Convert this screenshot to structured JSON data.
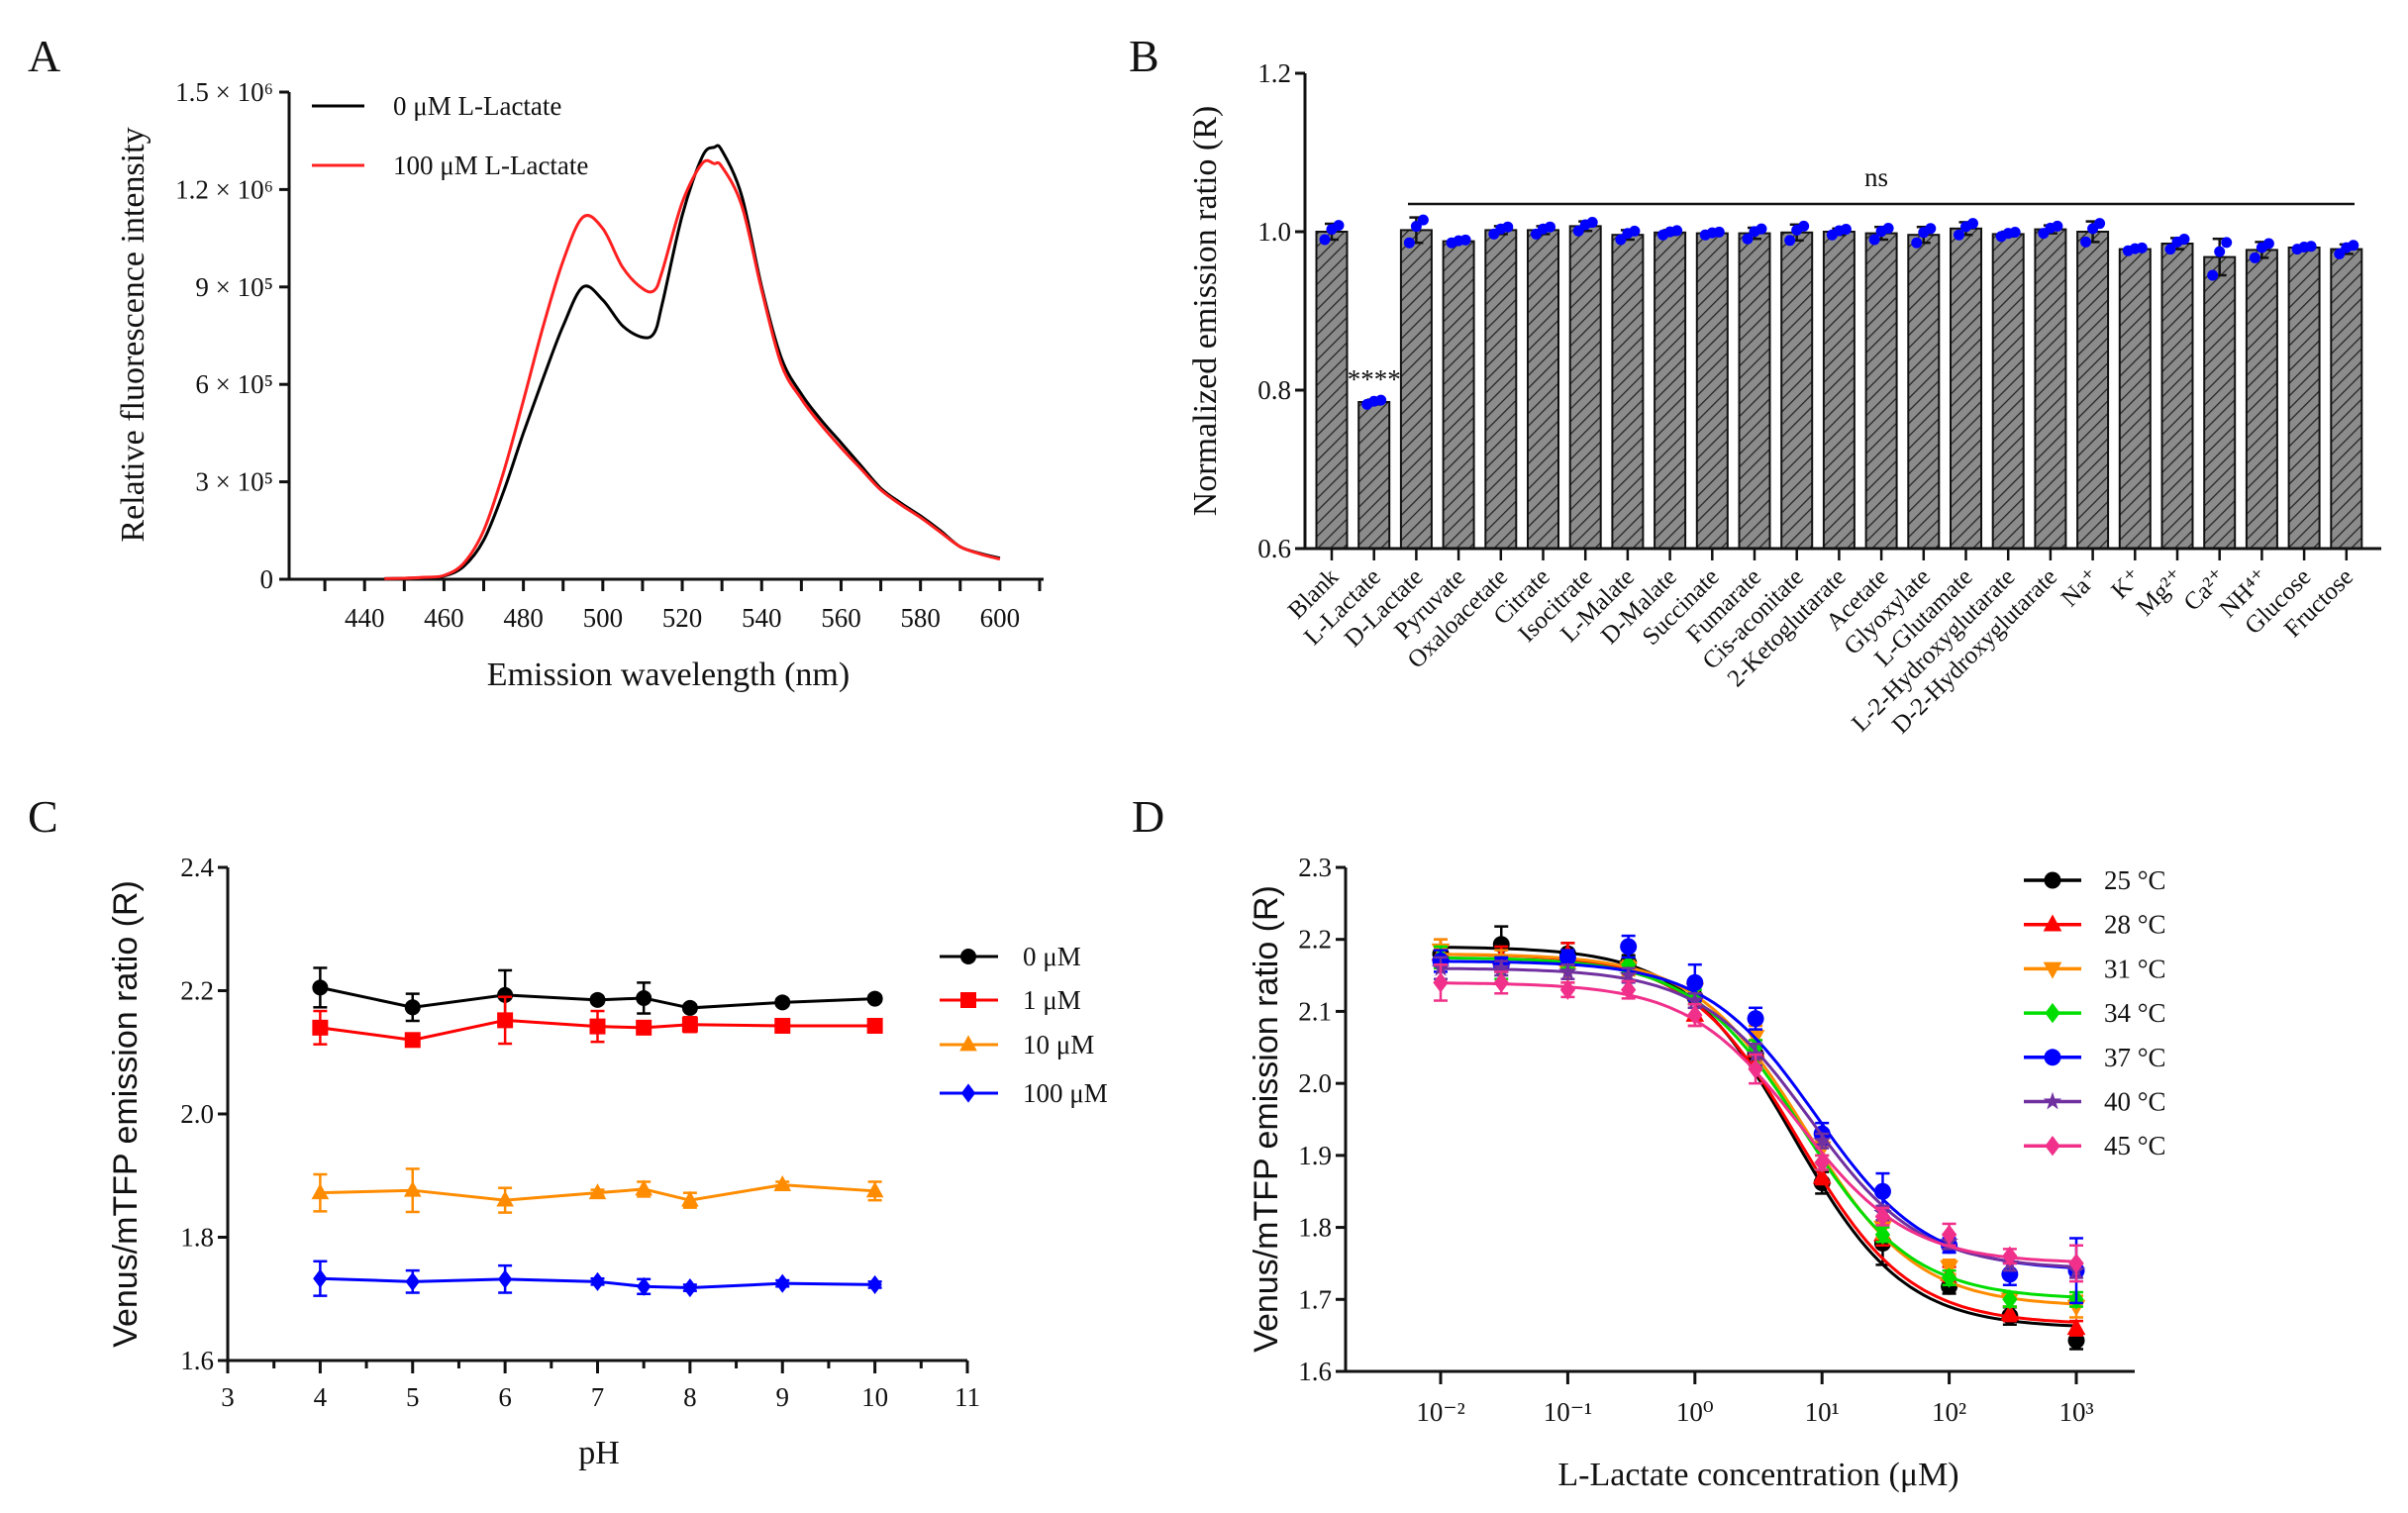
{
  "panels": {
    "a": "A",
    "b": "B",
    "c": "C",
    "d": "D"
  },
  "chart_data": [
    {
      "panel": "A",
      "type": "line",
      "xlabel": "Emission wavelength (nm)",
      "ylabel": "Relative fluorescence intensity",
      "xlim": [
        421,
        611
      ],
      "ylim": [
        0,
        1500000
      ],
      "x_ticks": [
        "440",
        "460",
        "480",
        "500",
        "520",
        "540",
        "560",
        "580",
        "600"
      ],
      "x_tick_values": [
        440,
        460,
        480,
        500,
        520,
        540,
        560,
        580,
        600
      ],
      "y_ticks": [
        "0",
        "3 × 10⁵",
        "6 × 10⁵",
        "9 × 10⁵",
        "1.2 × 10⁶",
        "1.5 × 10⁶"
      ],
      "y_tick_values": [
        0,
        300000,
        600000,
        900000,
        1200000,
        1500000
      ],
      "legend_position": "top-left",
      "x": [
        445,
        450,
        455,
        460,
        465,
        470,
        475,
        480,
        485,
        490,
        495,
        500,
        505,
        510,
        513,
        515,
        520,
        525,
        528,
        530,
        535,
        540,
        545,
        550,
        555,
        560,
        565,
        570,
        575,
        580,
        585,
        590,
        595,
        600
      ],
      "series": [
        {
          "name": "0 μM L-Lactate",
          "color": "#000000",
          "values": [
            2000,
            3000,
            5000,
            10000,
            40000,
            120000,
            270000,
            450000,
            620000,
            780000,
            900000,
            860000,
            780000,
            745000,
            760000,
            850000,
            1120000,
            1300000,
            1330000,
            1320000,
            1180000,
            900000,
            680000,
            570000,
            490000,
            420000,
            350000,
            280000,
            235000,
            195000,
            150000,
            100000,
            80000,
            65000
          ]
        },
        {
          "name": "100 μM L-Lactate",
          "color": "#ff2020",
          "values": [
            2000,
            3000,
            6000,
            12000,
            50000,
            150000,
            330000,
            550000,
            780000,
            980000,
            1115000,
            1080000,
            960000,
            895000,
            890000,
            950000,
            1160000,
            1280000,
            1280000,
            1270000,
            1150000,
            890000,
            660000,
            555000,
            475000,
            405000,
            340000,
            275000,
            230000,
            190000,
            145000,
            100000,
            78000,
            62000
          ]
        }
      ]
    },
    {
      "panel": "B",
      "type": "bar",
      "ylabel": "Normalized emission ratio (R)",
      "ylim": [
        0.6,
        1.2
      ],
      "y_ticks": [
        "0.6",
        "0.8",
        "1.0",
        "1.2"
      ],
      "y_tick_values": [
        0.6,
        0.8,
        1.0,
        1.2
      ],
      "bar_color": "#8c8c8c",
      "point_color": "#0000ff",
      "categories": [
        "Blank",
        "L-Lactate",
        "D-Lactate",
        "Pyruvate",
        "Oxaloacetate",
        "Citrate",
        "Isocitrate",
        "L-Malate",
        "D-Malate",
        "Succinate",
        "Fumarate",
        "Cis-aconitate",
        "2-Ketoglutarate",
        "Acetate",
        "Glyoxylate",
        "L-Glutamate",
        "L-2-Hydroxyglutarate",
        "D-2-Hydroxyglutarate",
        "Na⁺",
        "K⁺",
        "Mg²⁺",
        "Ca²⁺",
        "NH⁴⁺",
        "Glucose",
        "Fructose"
      ],
      "values": [
        1.0,
        0.785,
        1.002,
        0.988,
        1.002,
        1.002,
        1.007,
        0.996,
        0.999,
        0.998,
        0.998,
        0.999,
        1.0,
        0.998,
        0.996,
        1.004,
        0.997,
        1.003,
        1.0,
        0.978,
        0.985,
        0.968,
        0.977,
        0.98,
        0.978
      ],
      "errors": [
        0.01,
        0.003,
        0.016,
        0.002,
        0.005,
        0.005,
        0.006,
        0.006,
        0.003,
        0.002,
        0.007,
        0.01,
        0.004,
        0.008,
        0.01,
        0.008,
        0.003,
        0.005,
        0.013,
        0.002,
        0.007,
        0.023,
        0.01,
        0.002,
        0.006
      ],
      "annotations": {
        "significance_l_lactate": "****",
        "ns_label": "ns"
      }
    },
    {
      "panel": "C",
      "type": "line",
      "xlabel": "pH",
      "ylabel": "Venus/mTFP emission ratio (R)",
      "xlim": [
        3,
        11
      ],
      "ylim": [
        1.6,
        2.4
      ],
      "x_ticks": [
        "3",
        "4",
        "5",
        "6",
        "7",
        "8",
        "9",
        "10",
        "11"
      ],
      "x_tick_values": [
        3,
        4,
        5,
        6,
        7,
        8,
        9,
        10,
        11
      ],
      "y_ticks": [
        "1.6",
        "1.8",
        "2.0",
        "2.2",
        "2.4"
      ],
      "y_tick_values": [
        1.6,
        1.8,
        2.0,
        2.2,
        2.4
      ],
      "legend_position": "right",
      "x": [
        4,
        5,
        6,
        7,
        7.5,
        8,
        9,
        10
      ],
      "series": [
        {
          "name": "0 μM",
          "color": "#000000",
          "marker": "circle",
          "values": [
            2.205,
            2.173,
            2.193,
            2.185,
            2.188,
            2.172,
            2.181,
            2.187
          ],
          "errors": [
            0.032,
            0.022,
            0.04,
            0.005,
            0.025,
            0.005,
            0.005,
            0.005
          ]
        },
        {
          "name": "1 μM",
          "color": "#ff0000",
          "marker": "square",
          "values": [
            2.14,
            2.12,
            2.152,
            2.142,
            2.14,
            2.145,
            2.143,
            2.143
          ],
          "errors": [
            0.027,
            0.006,
            0.038,
            0.025,
            0.01,
            0.012,
            0.006,
            0.005
          ]
        },
        {
          "name": "10 μM",
          "color": "#ff8c00",
          "marker": "triangle-up",
          "values": [
            1.872,
            1.876,
            1.86,
            1.872,
            1.878,
            1.86,
            1.885,
            1.875
          ],
          "errors": [
            0.03,
            0.035,
            0.02,
            0.005,
            0.012,
            0.012,
            0.005,
            0.015
          ]
        },
        {
          "name": "100 μM",
          "color": "#0000ff",
          "marker": "diamond",
          "values": [
            1.733,
            1.728,
            1.732,
            1.728,
            1.72,
            1.718,
            1.725,
            1.723
          ],
          "errors": [
            0.028,
            0.018,
            0.022,
            0.005,
            0.012,
            0.005,
            0.005,
            0.005
          ]
        }
      ]
    },
    {
      "panel": "D",
      "type": "scatter",
      "xlabel": "L-Lactate concentration (μM)",
      "ylabel": "Venus/mTFP emission ratio (R)",
      "x_scale": "log",
      "xlim": [
        0.0018,
        2900
      ],
      "ylim": [
        1.6,
        2.3
      ],
      "x_ticks": [
        "10⁻²",
        "10⁻¹",
        "10⁰",
        "10¹",
        "10²",
        "10³"
      ],
      "x_tick_values": [
        0.01,
        0.1,
        1,
        10,
        100,
        1000
      ],
      "y_ticks": [
        "1.6",
        "1.7",
        "1.8",
        "1.9",
        "2.0",
        "2.1",
        "2.2",
        "2.3"
      ],
      "y_tick_values": [
        1.6,
        1.7,
        1.8,
        1.9,
        2.0,
        2.1,
        2.2,
        2.3
      ],
      "legend_position": "top-right",
      "x": [
        0.01,
        0.03,
        0.1,
        0.3,
        1,
        3,
        10,
        30,
        100,
        300,
        1000
      ],
      "series": [
        {
          "name": "25 °C",
          "color": "#000000",
          "marker": "circle",
          "values": [
            2.18,
            2.193,
            2.18,
            2.168,
            2.12,
            2.04,
            1.862,
            1.778,
            1.718,
            1.677,
            1.643
          ],
          "errors": [
            0.02,
            0.025,
            0.015,
            0.01,
            0.015,
            0.015,
            0.015,
            0.03,
            0.01,
            0.012,
            0.012
          ],
          "fit": {
            "top": 2.19,
            "bottom": 1.66,
            "ec50": 6
          }
        },
        {
          "name": "28 °C",
          "color": "#ff0000",
          "marker": "triangle-up",
          "values": [
            2.18,
            2.175,
            2.18,
            2.165,
            2.095,
            2.045,
            1.87,
            1.79,
            1.735,
            1.68,
            1.66
          ],
          "errors": [
            0.02,
            0.015,
            0.015,
            0.01,
            0.015,
            0.015,
            0.01,
            0.015,
            0.01,
            0.01,
            0.01
          ],
          "fit": {
            "top": 2.18,
            "bottom": 1.665,
            "ec50": 6.5
          }
        },
        {
          "name": "31 °C",
          "color": "#ff8c00",
          "marker": "triangle-down",
          "values": [
            2.185,
            2.17,
            2.155,
            2.16,
            2.13,
            2.065,
            1.91,
            1.8,
            1.745,
            1.7,
            1.69
          ],
          "errors": [
            0.015,
            0.015,
            0.015,
            0.01,
            0.015,
            0.015,
            0.01,
            0.015,
            0.01,
            0.01,
            0.015
          ],
          "fit": {
            "top": 2.18,
            "bottom": 1.69,
            "ec50": 7.5
          }
        },
        {
          "name": "34 °C",
          "color": "#00dd00",
          "marker": "diamond",
          "values": [
            2.175,
            2.16,
            2.17,
            2.165,
            2.12,
            2.05,
            1.89,
            1.79,
            1.73,
            1.7,
            1.7
          ],
          "errors": [
            0.015,
            0.015,
            0.01,
            0.01,
            0.01,
            0.01,
            0.01,
            0.01,
            0.01,
            0.01,
            0.01
          ],
          "fit": {
            "top": 2.175,
            "bottom": 1.7,
            "ec50": 7
          }
        },
        {
          "name": "37 °C",
          "color": "#0000ff",
          "marker": "circle",
          "values": [
            2.17,
            2.165,
            2.175,
            2.19,
            2.14,
            2.09,
            1.93,
            1.85,
            1.775,
            1.735,
            1.74
          ],
          "errors": [
            0.015,
            0.01,
            0.01,
            0.015,
            0.025,
            0.015,
            0.015,
            0.025,
            0.01,
            0.015,
            0.045
          ],
          "fit": {
            "top": 2.17,
            "bottom": 1.74,
            "ec50": 9
          }
        },
        {
          "name": "40 °C",
          "color": "#7030a0",
          "marker": "star",
          "values": [
            2.16,
            2.16,
            2.155,
            2.15,
            2.115,
            2.04,
            1.92,
            1.82,
            1.78,
            1.75,
            1.74
          ],
          "errors": [
            0.015,
            0.01,
            0.01,
            0.01,
            0.01,
            0.015,
            0.01,
            0.01,
            0.01,
            0.01,
            0.01
          ],
          "fit": {
            "top": 2.16,
            "bottom": 1.742,
            "ec50": 8
          }
        },
        {
          "name": "45 °C",
          "color": "#f0308a",
          "marker": "diamond",
          "values": [
            2.14,
            2.14,
            2.13,
            2.13,
            2.095,
            2.02,
            1.89,
            1.815,
            1.79,
            1.76,
            1.75
          ],
          "errors": [
            0.025,
            0.015,
            0.01,
            0.012,
            0.015,
            0.02,
            0.01,
            0.012,
            0.015,
            0.01,
            0.025
          ],
          "fit": {
            "top": 2.14,
            "bottom": 1.75,
            "ec50": 6.5
          }
        }
      ]
    }
  ]
}
